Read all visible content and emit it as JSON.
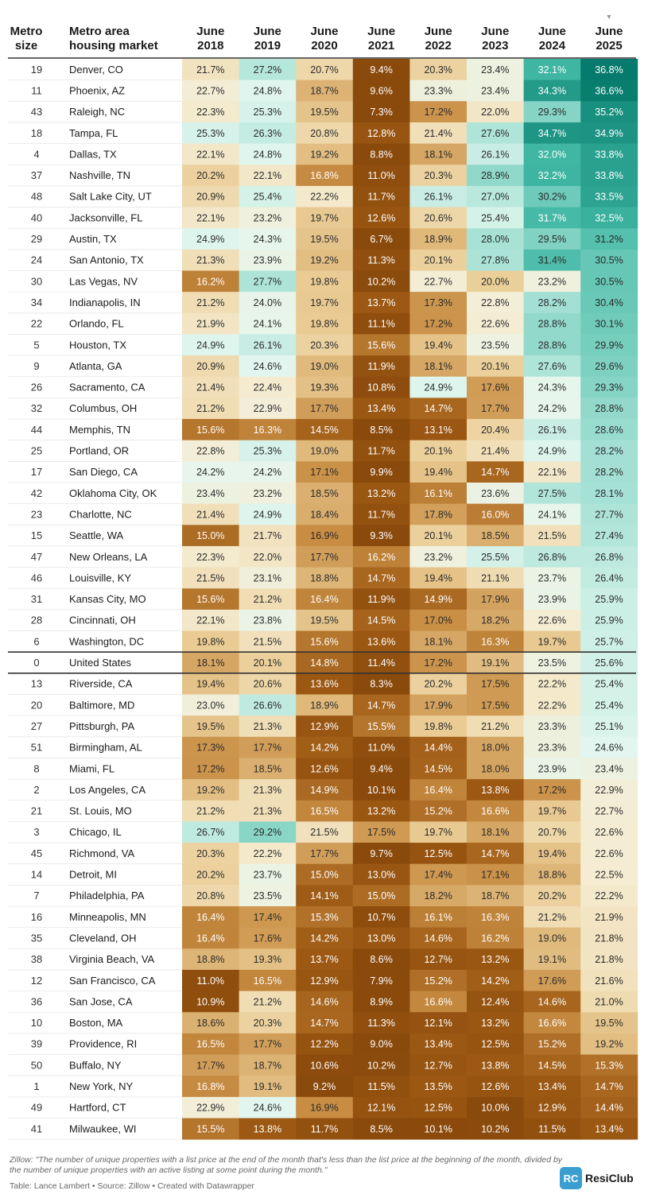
{
  "chart_data": {
    "type": "table",
    "title": "",
    "columns": [
      "Metro size",
      "Metro area housing market",
      "June 2018",
      "June 2019",
      "June 2020",
      "June 2021",
      "June 2022",
      "June 2023",
      "June 2024",
      "June 2025"
    ],
    "header": {
      "metro_size": [
        "Metro",
        "size"
      ],
      "market": [
        "Metro area",
        "housing market"
      ],
      "years": [
        [
          "June",
          "2018"
        ],
        [
          "June",
          "2019"
        ],
        [
          "June",
          "2020"
        ],
        [
          "June",
          "2021"
        ],
        [
          "June",
          "2022"
        ],
        [
          "June",
          "2023"
        ],
        [
          "June",
          "2024"
        ],
        [
          "June",
          "2025"
        ]
      ]
    },
    "sort_indicator": "▼",
    "value_format": "percent",
    "rows": [
      {
        "rank": "19",
        "metro": "Denver, CO",
        "values": [
          21.7,
          27.2,
          20.7,
          9.4,
          20.3,
          23.4,
          32.1,
          36.8
        ]
      },
      {
        "rank": "11",
        "metro": "Phoenix, AZ",
        "values": [
          22.7,
          24.8,
          18.7,
          9.6,
          23.3,
          23.4,
          34.3,
          36.6
        ]
      },
      {
        "rank": "43",
        "metro": "Raleigh, NC",
        "values": [
          22.3,
          25.3,
          19.5,
          7.3,
          17.2,
          22.0,
          29.3,
          35.2
        ]
      },
      {
        "rank": "18",
        "metro": "Tampa, FL",
        "values": [
          25.3,
          26.3,
          20.8,
          12.8,
          21.4,
          27.6,
          34.7,
          34.9
        ]
      },
      {
        "rank": "4",
        "metro": "Dallas, TX",
        "values": [
          22.1,
          24.8,
          19.2,
          8.8,
          18.1,
          26.1,
          32.0,
          33.8
        ]
      },
      {
        "rank": "37",
        "metro": "Nashville, TN",
        "values": [
          20.2,
          22.1,
          16.8,
          11.0,
          20.3,
          28.9,
          32.2,
          33.8
        ]
      },
      {
        "rank": "48",
        "metro": "Salt Lake City, UT",
        "values": [
          20.9,
          25.4,
          22.2,
          11.7,
          26.1,
          27.0,
          30.2,
          33.5
        ]
      },
      {
        "rank": "40",
        "metro": "Jacksonville, FL",
        "values": [
          22.1,
          23.2,
          19.7,
          12.6,
          20.6,
          25.4,
          31.7,
          32.5
        ]
      },
      {
        "rank": "29",
        "metro": "Austin, TX",
        "values": [
          24.9,
          24.3,
          19.5,
          6.7,
          18.9,
          28.0,
          29.5,
          31.2
        ]
      },
      {
        "rank": "24",
        "metro": "San Antonio, TX",
        "values": [
          21.3,
          23.9,
          19.2,
          11.3,
          20.1,
          27.8,
          31.4,
          30.5
        ]
      },
      {
        "rank": "30",
        "metro": "Las Vegas, NV",
        "values": [
          16.2,
          27.7,
          19.8,
          10.2,
          22.7,
          20.0,
          23.2,
          30.5
        ]
      },
      {
        "rank": "34",
        "metro": "Indianapolis, IN",
        "values": [
          21.2,
          24.0,
          19.7,
          13.7,
          17.3,
          22.8,
          28.2,
          30.4
        ]
      },
      {
        "rank": "22",
        "metro": "Orlando, FL",
        "values": [
          21.9,
          24.1,
          19.8,
          11.1,
          17.2,
          22.6,
          28.8,
          30.1
        ]
      },
      {
        "rank": "5",
        "metro": "Houston, TX",
        "values": [
          24.9,
          26.1,
          20.3,
          15.6,
          19.4,
          23.5,
          28.8,
          29.9
        ]
      },
      {
        "rank": "9",
        "metro": "Atlanta, GA",
        "values": [
          20.9,
          24.6,
          19.0,
          11.9,
          18.1,
          20.1,
          27.6,
          29.6
        ]
      },
      {
        "rank": "26",
        "metro": "Sacramento, CA",
        "values": [
          21.4,
          22.4,
          19.3,
          10.8,
          24.9,
          17.6,
          24.3,
          29.3
        ]
      },
      {
        "rank": "32",
        "metro": "Columbus, OH",
        "values": [
          21.2,
          22.9,
          17.7,
          13.4,
          14.7,
          17.7,
          24.2,
          28.8
        ]
      },
      {
        "rank": "44",
        "metro": "Memphis, TN",
        "values": [
          15.6,
          16.3,
          14.5,
          8.5,
          13.1,
          20.4,
          26.1,
          28.6
        ]
      },
      {
        "rank": "25",
        "metro": "Portland, OR",
        "values": [
          22.8,
          25.3,
          19.0,
          11.7,
          20.1,
          21.4,
          24.9,
          28.2
        ]
      },
      {
        "rank": "17",
        "metro": "San Diego, CA",
        "values": [
          24.2,
          24.2,
          17.1,
          9.9,
          19.4,
          14.7,
          22.1,
          28.2
        ]
      },
      {
        "rank": "42",
        "metro": "Oklahoma City, OK",
        "values": [
          23.4,
          23.2,
          18.5,
          13.2,
          16.1,
          23.6,
          27.5,
          28.1
        ]
      },
      {
        "rank": "23",
        "metro": "Charlotte, NC",
        "values": [
          21.4,
          24.9,
          18.4,
          11.7,
          17.8,
          16.0,
          24.1,
          27.7
        ]
      },
      {
        "rank": "15",
        "metro": "Seattle, WA",
        "values": [
          15.0,
          21.7,
          16.9,
          9.3,
          20.1,
          18.5,
          21.5,
          27.4
        ]
      },
      {
        "rank": "47",
        "metro": "New Orleans, LA",
        "values": [
          22.3,
          22.0,
          17.7,
          16.2,
          23.2,
          25.5,
          26.8,
          26.8
        ]
      },
      {
        "rank": "46",
        "metro": "Louisville, KY",
        "values": [
          21.5,
          23.1,
          18.8,
          14.7,
          19.4,
          21.1,
          23.7,
          26.4
        ]
      },
      {
        "rank": "31",
        "metro": "Kansas City, MO",
        "values": [
          15.6,
          21.2,
          16.4,
          11.9,
          14.9,
          17.9,
          23.9,
          25.9
        ]
      },
      {
        "rank": "28",
        "metro": "Cincinnati, OH",
        "values": [
          22.1,
          23.8,
          19.5,
          14.5,
          17.0,
          18.2,
          22.6,
          25.9
        ]
      },
      {
        "rank": "6",
        "metro": "Washington, DC",
        "values": [
          19.8,
          21.5,
          15.6,
          13.6,
          18.1,
          16.3,
          19.7,
          25.7
        ]
      },
      {
        "rank": "0",
        "metro": "United States",
        "values": [
          18.1,
          20.1,
          14.8,
          11.4,
          17.2,
          19.1,
          23.5,
          25.6
        ],
        "highlight": true
      },
      {
        "rank": "13",
        "metro": "Riverside, CA",
        "values": [
          19.4,
          20.6,
          13.6,
          8.3,
          20.2,
          17.5,
          22.2,
          25.4
        ]
      },
      {
        "rank": "20",
        "metro": "Baltimore, MD",
        "values": [
          23.0,
          26.6,
          18.9,
          14.7,
          17.9,
          17.5,
          22.2,
          25.4
        ]
      },
      {
        "rank": "27",
        "metro": "Pittsburgh, PA",
        "values": [
          19.5,
          21.3,
          12.9,
          15.5,
          19.8,
          21.2,
          23.3,
          25.1
        ]
      },
      {
        "rank": "51",
        "metro": "Birmingham, AL",
        "values": [
          17.3,
          17.7,
          14.2,
          11.0,
          14.4,
          18.0,
          23.3,
          24.6
        ]
      },
      {
        "rank": "8",
        "metro": "Miami, FL",
        "values": [
          17.2,
          18.5,
          12.6,
          9.4,
          14.5,
          18.0,
          23.9,
          23.4
        ]
      },
      {
        "rank": "2",
        "metro": "Los Angeles, CA",
        "values": [
          19.2,
          21.3,
          14.9,
          10.1,
          16.4,
          13.8,
          17.2,
          22.9
        ]
      },
      {
        "rank": "21",
        "metro": "St. Louis, MO",
        "values": [
          21.2,
          21.3,
          16.5,
          13.2,
          15.2,
          16.6,
          19.7,
          22.7
        ]
      },
      {
        "rank": "3",
        "metro": "Chicago, IL",
        "values": [
          26.7,
          29.2,
          21.5,
          17.5,
          19.7,
          18.1,
          20.7,
          22.6
        ]
      },
      {
        "rank": "45",
        "metro": "Richmond, VA",
        "values": [
          20.3,
          22.2,
          17.7,
          9.7,
          12.5,
          14.7,
          19.4,
          22.6
        ]
      },
      {
        "rank": "14",
        "metro": "Detroit, MI",
        "values": [
          20.2,
          23.7,
          15.0,
          13.0,
          17.4,
          17.1,
          18.8,
          22.5
        ]
      },
      {
        "rank": "7",
        "metro": "Philadelphia, PA",
        "values": [
          20.8,
          23.5,
          14.1,
          15.0,
          18.2,
          18.7,
          20.2,
          22.2
        ]
      },
      {
        "rank": "16",
        "metro": "Minneapolis, MN",
        "values": [
          16.4,
          17.4,
          15.3,
          10.7,
          16.1,
          16.3,
          21.2,
          21.9
        ]
      },
      {
        "rank": "35",
        "metro": "Cleveland, OH",
        "values": [
          16.4,
          17.6,
          14.2,
          13.0,
          14.6,
          16.2,
          19.0,
          21.8
        ]
      },
      {
        "rank": "38",
        "metro": "Virginia Beach, VA",
        "values": [
          18.8,
          19.3,
          13.7,
          8.6,
          12.7,
          13.2,
          19.1,
          21.8
        ]
      },
      {
        "rank": "12",
        "metro": "San Francisco, CA",
        "values": [
          11.0,
          16.5,
          12.9,
          7.9,
          15.2,
          14.2,
          17.6,
          21.6
        ]
      },
      {
        "rank": "36",
        "metro": "San Jose, CA",
        "values": [
          10.9,
          21.2,
          14.6,
          8.9,
          16.6,
          12.4,
          14.6,
          21.0
        ]
      },
      {
        "rank": "10",
        "metro": "Boston, MA",
        "values": [
          18.6,
          20.3,
          14.7,
          11.3,
          12.1,
          13.2,
          16.6,
          19.5
        ]
      },
      {
        "rank": "39",
        "metro": "Providence, RI",
        "values": [
          16.5,
          17.7,
          12.2,
          9.0,
          13.4,
          12.5,
          15.2,
          19.2
        ]
      },
      {
        "rank": "50",
        "metro": "Buffalo, NY",
        "values": [
          17.7,
          18.7,
          10.6,
          10.2,
          12.7,
          13.8,
          14.5,
          15.3
        ]
      },
      {
        "rank": "1",
        "metro": "New York, NY",
        "values": [
          16.8,
          19.1,
          9.2,
          11.5,
          13.5,
          12.6,
          13.4,
          14.7
        ]
      },
      {
        "rank": "49",
        "metro": "Hartford, CT",
        "values": [
          22.9,
          24.6,
          16.9,
          12.1,
          12.5,
          10.0,
          12.9,
          14.4
        ]
      },
      {
        "rank": "41",
        "metro": "Milwaukee, WI",
        "values": [
          15.5,
          13.8,
          11.7,
          8.5,
          10.1,
          10.2,
          11.5,
          13.4
        ]
      }
    ],
    "color_scale": {
      "stops": [
        {
          "value": 10,
          "color": "#8a4a0c"
        },
        {
          "value": 14,
          "color": "#9e5a14"
        },
        {
          "value": 17,
          "color": "#c98f45"
        },
        {
          "value": 20,
          "color": "#ebcf99"
        },
        {
          "value": 22.5,
          "color": "#f5ecd2"
        },
        {
          "value": 24.5,
          "color": "#e4f7f0"
        },
        {
          "value": 28,
          "color": "#a8e2d5"
        },
        {
          "value": 32,
          "color": "#3fb7a3"
        },
        {
          "value": 37,
          "color": "#04796b"
        }
      ],
      "text_dark": "#2a2a2a",
      "text_light": "#ffffff"
    }
  },
  "footer": {
    "source_name": "Zillow",
    "description": ": \"The number of unique properties with a list price at the end of the month that's less than the list price at the beginning of the month, divided by the number of unique properties with an active listing at some point during the month.\"",
    "credit": "Table: Lance Lambert • Source: Zillow • Created with Datawrapper"
  },
  "brand": {
    "logo_text": "RC",
    "name": "ResiClub",
    "logo_color": "#3a9fd0"
  }
}
